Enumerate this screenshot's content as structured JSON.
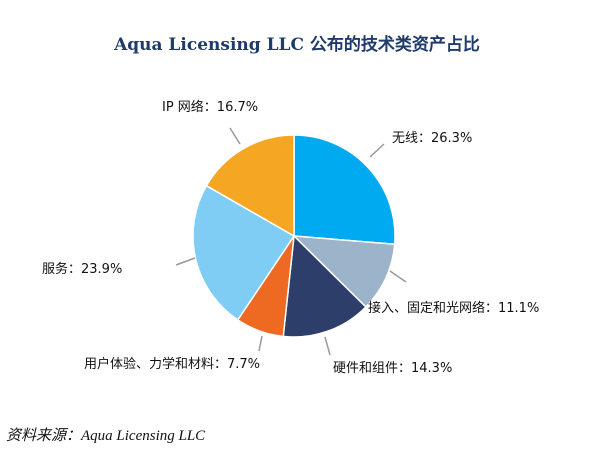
{
  "title": "Aqua Licensing LLC 公布的技术类资产占比",
  "source": "资料来源：Aqua Licensing LLC",
  "chart_data": {
    "type": "pie",
    "title": "Aqua Licensing LLC 公布的技术类资产占比",
    "slices": [
      {
        "name": "无线",
        "value": 26.3,
        "label": "无线：26.3%",
        "color": "#00aaf0"
      },
      {
        "name": "接入、固定和光网络",
        "value": 11.1,
        "label": "接入、固定和光网络：11.1%",
        "color": "#9bb4c9"
      },
      {
        "name": "硬件和组件",
        "value": 14.3,
        "label": "硬件和组件：14.3%",
        "color": "#2e3e6b"
      },
      {
        "name": "用户体验、力学和材料",
        "value": 7.7,
        "label": "用户体验、力学和材料：7.7%",
        "color": "#ee6a22"
      },
      {
        "name": "服务",
        "value": 23.9,
        "label": "服务：23.9%",
        "color": "#7fccf5"
      },
      {
        "name": "IP 网络",
        "value": 16.7,
        "label": "IP 网络：16.7%",
        "color": "#f5a623"
      }
    ],
    "start": "12 o'clock",
    "direction": "clockwise",
    "legend": "none",
    "leader_line_color": "#999999"
  }
}
